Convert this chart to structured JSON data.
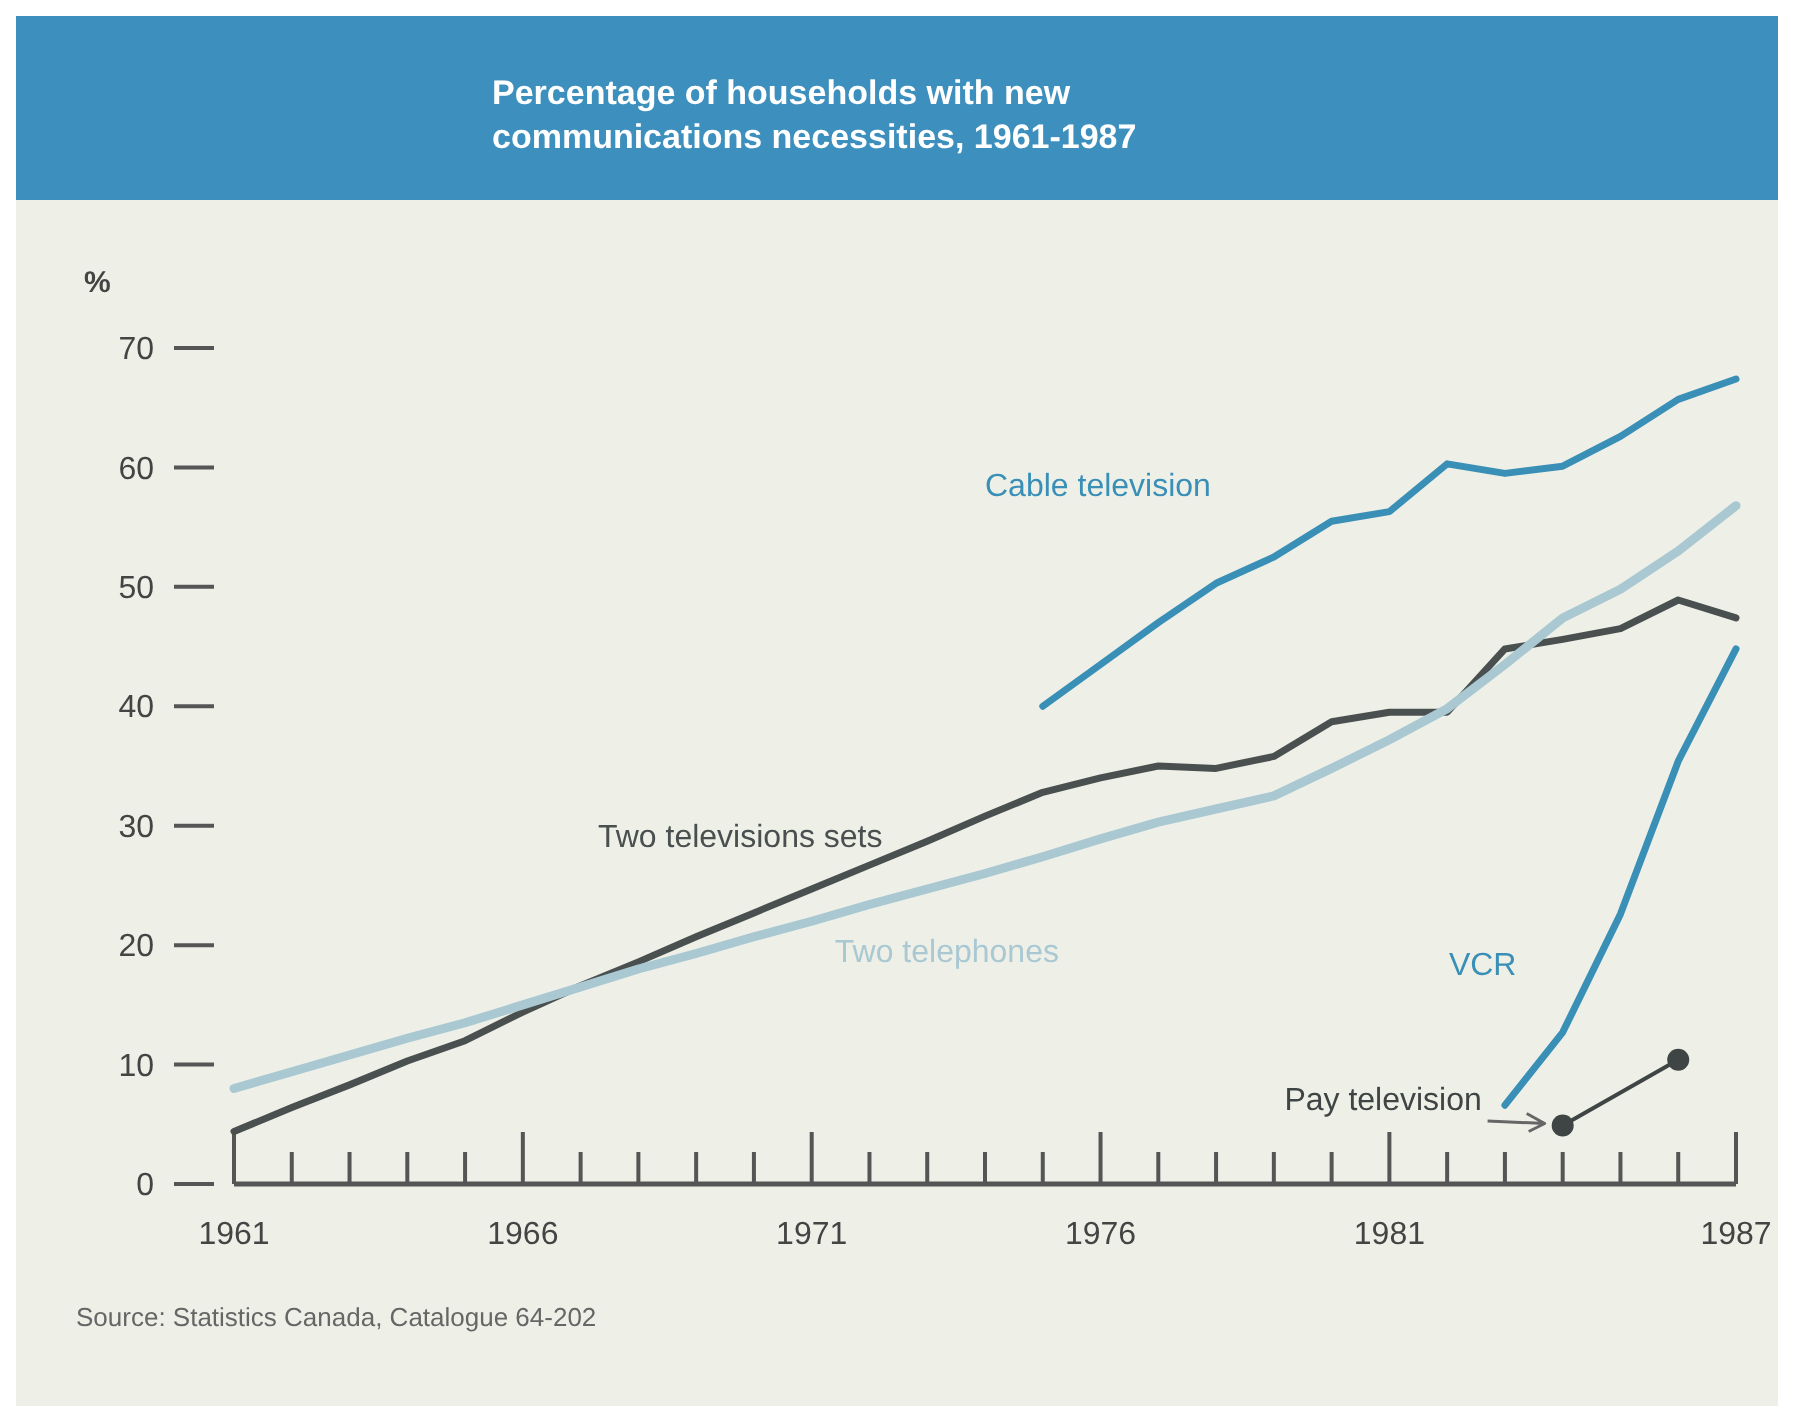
{
  "chart_data": {
    "type": "line",
    "title": "Percentage of households with new communications necessities, 1961-1987",
    "ylabel": "%",
    "xlim": [
      1961,
      1987
    ],
    "xticks": [
      1961,
      {
        "value": 1962,
        "label": null
      },
      {
        "value": 1963,
        "label": null
      },
      {
        "value": 1964,
        "label": null
      },
      {
        "value": 1965,
        "label": null
      },
      1966,
      {
        "value": 1967,
        "label": null
      },
      {
        "value": 1968,
        "label": null
      },
      {
        "value": 1969,
        "label": null
      },
      {
        "value": 1970,
        "label": null
      },
      1971,
      {
        "value": 1972,
        "label": null
      },
      {
        "value": 1973,
        "label": null
      },
      {
        "value": 1974,
        "label": null
      },
      {
        "value": 1975,
        "label": null
      },
      1976,
      {
        "value": 1977,
        "label": null
      },
      {
        "value": 1978,
        "label": null
      },
      {
        "value": 1979,
        "label": null
      },
      {
        "value": 1980,
        "label": null
      },
      1981,
      {
        "value": 1982,
        "label": null
      },
      {
        "value": 1983,
        "label": null
      },
      {
        "value": 1984,
        "label": null
      },
      {
        "value": 1985,
        "label": null
      },
      {
        "value": 1986,
        "label": null
      },
      1987
    ],
    "ylim": [
      0,
      70
    ],
    "yticks": [
      0,
      10,
      20,
      30,
      40,
      50,
      60,
      70
    ],
    "grid": false,
    "series": [
      {
        "name": "Cable television",
        "color": "#3a8fb7",
        "x": [
          1975,
          1976,
          1977,
          1978,
          1979,
          1980,
          1981,
          1982,
          1983,
          1984,
          1985,
          1986,
          1987
        ],
        "values": [
          40,
          43.5,
          47,
          50.3,
          52.5,
          55.5,
          56.3,
          60.3,
          59.5,
          60.1,
          62.6,
          65.7,
          67.4
        ]
      },
      {
        "name": "Two televisions sets",
        "color": "#4a5050",
        "x": [
          1961,
          1962,
          1963,
          1964,
          1965,
          1966,
          1967,
          1968,
          1969,
          1970,
          1971,
          1972,
          1973,
          1974,
          1975,
          1976,
          1977,
          1978,
          1979,
          1980,
          1981,
          1982,
          1983,
          1984,
          1985,
          1986,
          1987
        ],
        "values": [
          4.4,
          6.4,
          8.3,
          10.3,
          12,
          14.4,
          16.6,
          18.6,
          20.7,
          22.7,
          24.7,
          26.7,
          28.7,
          30.8,
          32.8,
          34,
          35,
          34.8,
          35.8,
          38.7,
          39.5,
          39.5,
          44.8,
          45.6,
          46.5,
          48.9,
          47.4
        ]
      },
      {
        "name": "Two telephones",
        "color": "#a9c8d2",
        "x": [
          1961,
          1962,
          1963,
          1964,
          1965,
          1966,
          1967,
          1968,
          1969,
          1970,
          1971,
          1972,
          1973,
          1974,
          1975,
          1976,
          1977,
          1978,
          1979,
          1980,
          1981,
          1982,
          1983,
          1984,
          1985,
          1986,
          1987
        ],
        "values": [
          8,
          9.4,
          10.8,
          12.2,
          13.5,
          15,
          16.5,
          18,
          19.3,
          20.7,
          22,
          23.4,
          24.7,
          26,
          27.4,
          28.9,
          30.3,
          31.4,
          32.5,
          34.8,
          37.2,
          39.8,
          43.5,
          47.4,
          49.8,
          53,
          56.8
        ]
      },
      {
        "name": "VCR",
        "color": "#3a8fb7",
        "x": [
          1983,
          1984,
          1985,
          1986,
          1987
        ],
        "values": [
          6.6,
          12.7,
          22.6,
          35.4,
          44.8
        ]
      },
      {
        "name": "Pay television",
        "color": "#3f4545",
        "marker": "circle",
        "x": [
          1984,
          1986
        ],
        "values": [
          4.9,
          10.4
        ]
      }
    ],
    "annotations": [
      "Source:  Statistics Canada, Catalogue 64-202"
    ]
  }
}
